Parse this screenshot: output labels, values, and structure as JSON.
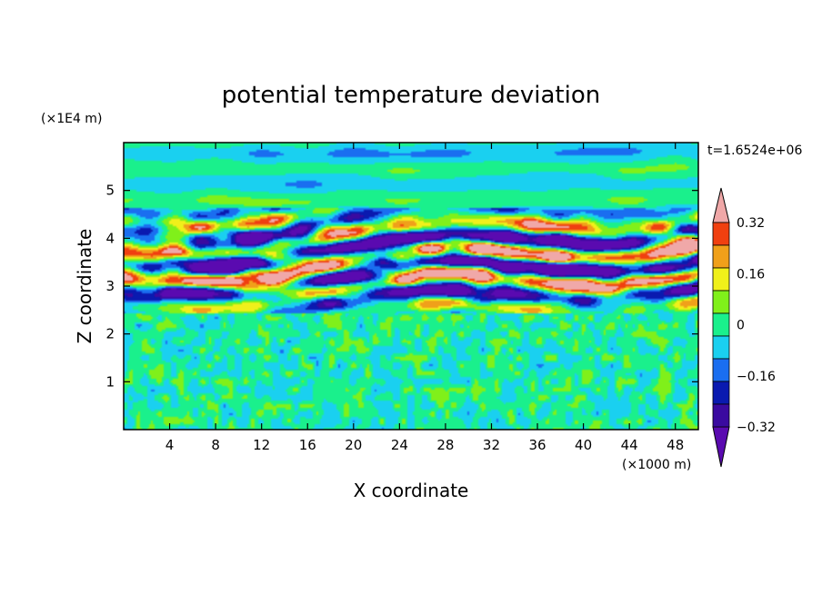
{
  "chart_data": {
    "type": "heatmap",
    "title": "potential temperature deviation",
    "xlabel": "X coordinate",
    "ylabel": "Z coordinate",
    "x_unit": "(×1000 m)",
    "y_unit": "(×1E4 m)",
    "time_label": "t=1.6524e+06",
    "xlim": [
      0,
      50
    ],
    "ylim": [
      0,
      6
    ],
    "x_ticks": [
      4,
      8,
      12,
      16,
      20,
      24,
      28,
      32,
      36,
      40,
      44,
      48
    ],
    "y_ticks": [
      1,
      2,
      3,
      4,
      5
    ],
    "x_tick_labels": [
      "4",
      "8",
      "12",
      "16",
      "20",
      "24",
      "28",
      "32",
      "36",
      "40",
      "44",
      "48"
    ],
    "y_tick_labels": [
      "1",
      "2",
      "3",
      "4",
      "5"
    ],
    "colorbar": {
      "levels": [
        -0.4,
        -0.32,
        -0.24,
        -0.16,
        -0.08,
        0,
        0.08,
        0.16,
        0.24,
        0.32,
        0.4
      ],
      "labeled_levels": [
        0.32,
        0.16,
        0,
        -0.16,
        -0.32
      ],
      "labels": [
        "0.32",
        "0.16",
        "0",
        "−0.16",
        "−0.32"
      ],
      "colors": [
        "#5a0ab0",
        "#3a0aa0",
        "#0a1ab0",
        "#1a6ef0",
        "#1ad0f0",
        "#1af08c",
        "#80f01a",
        "#f0f01a",
        "#f0a01a",
        "#f04010",
        "#f0a8a8"
      ],
      "extend": "both"
    },
    "regions": [
      {
        "z_range": [
          0,
          2.4
        ],
        "description_value": "near 0, fine-scale noise between -0.08 and 0.08"
      },
      {
        "z_range": [
          2.4,
          4.6
        ],
        "description_value": "strong wave layer, values from below -0.4 to above 0.4"
      },
      {
        "z_range": [
          4.6,
          6.0
        ],
        "description_value": "weak stratified layer near 0"
      }
    ]
  }
}
